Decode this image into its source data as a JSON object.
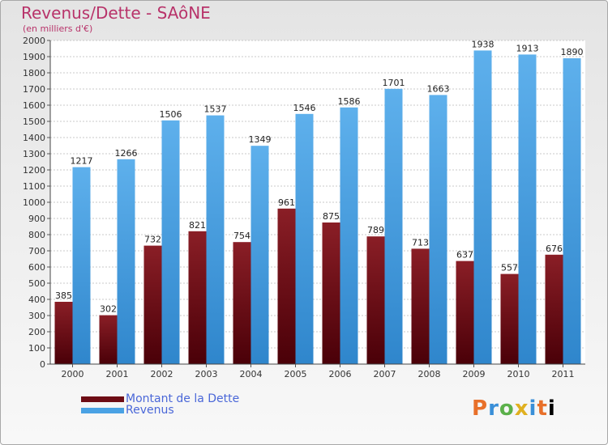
{
  "header": {
    "title": "Revenus/Dette - SAôNE",
    "subtitle": "(en milliers d'€)"
  },
  "colors": {
    "dette": "#6e0c14",
    "revenus": "#4aa2e4",
    "title": "#b8336a",
    "legend_text": "#4a67d8"
  },
  "legend": {
    "dette_label": "Montant de la Dette",
    "revenus_label": "Revenus"
  },
  "logo": {
    "text": "Proxiti"
  },
  "chart_data": {
    "type": "bar",
    "title": "Revenus/Dette - SAôNE",
    "subtitle": "(en milliers d'€)",
    "categories": [
      "2000",
      "2001",
      "2002",
      "2003",
      "2004",
      "2005",
      "2006",
      "2007",
      "2008",
      "2009",
      "2010",
      "2011"
    ],
    "series": [
      {
        "name": "Montant de la Dette",
        "values": [
          385,
          302,
          732,
          821,
          754,
          961,
          875,
          789,
          713,
          637,
          557,
          676
        ]
      },
      {
        "name": "Revenus",
        "values": [
          1217,
          1266,
          1506,
          1537,
          1349,
          1546,
          1586,
          1701,
          1663,
          1938,
          1913,
          1890
        ]
      }
    ],
    "ylim": [
      0,
      2000
    ],
    "ytick_step": 100,
    "grid": true,
    "legend_position": "bottom-left",
    "data_labels": true
  }
}
